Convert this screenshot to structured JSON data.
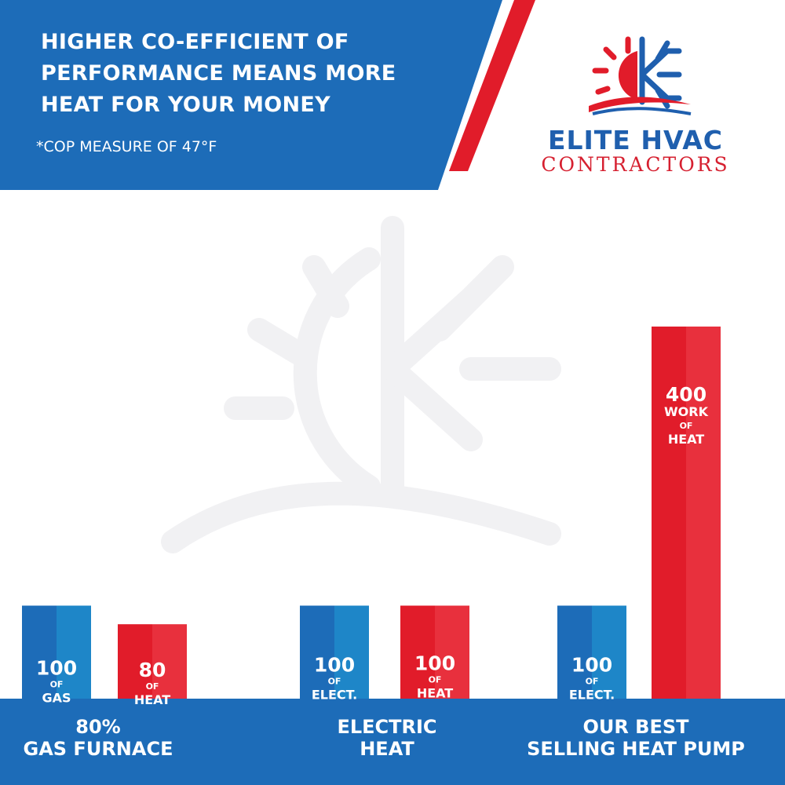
{
  "header": {
    "headline_lines": [
      "HIGHER CO-EFFICIENT OF",
      "PERFORMANCE MEANS MORE",
      "HEAT FOR YOUR MONEY"
    ],
    "footnote": "*COP MEASURE OF 47°F"
  },
  "logo": {
    "name": "ELITE HVAC",
    "subtitle": "CONTRACTORS",
    "icon": "sun-snowflake-logo-icon"
  },
  "colors": {
    "blue": "#1d6cb8",
    "blue_light": "#1e86c8",
    "red": "#e11c2a",
    "red_light": "#e8303d",
    "stripe_red": "#e11c2a"
  },
  "chart_data": {
    "type": "bar",
    "ylim": [
      0,
      400
    ],
    "categories": [
      {
        "label_lines": [
          "80%",
          "GAS FURNACE"
        ]
      },
      {
        "label_lines": [
          "ELECTRIC",
          "HEAT"
        ]
      },
      {
        "label_lines": [
          "OUR BEST",
          "SELLING HEAT PUMP"
        ]
      }
    ],
    "bars": [
      {
        "category": 0,
        "kind": "input",
        "value": 100,
        "text": [
          "100",
          "OF",
          "GAS"
        ]
      },
      {
        "category": 0,
        "kind": "output",
        "value": 80,
        "text": [
          "80",
          "OF",
          "HEAT"
        ]
      },
      {
        "category": 1,
        "kind": "input",
        "value": 100,
        "text": [
          "100",
          "OF",
          "ELECT."
        ]
      },
      {
        "category": 1,
        "kind": "output",
        "value": 100,
        "text": [
          "100",
          "OF",
          "HEAT"
        ]
      },
      {
        "category": 2,
        "kind": "input",
        "value": 100,
        "text": [
          "100",
          "OF",
          "ELECT."
        ]
      },
      {
        "category": 2,
        "kind": "output",
        "value": 400,
        "text": [
          "400",
          "WORK",
          "OF",
          "HEAT"
        ]
      }
    ]
  }
}
